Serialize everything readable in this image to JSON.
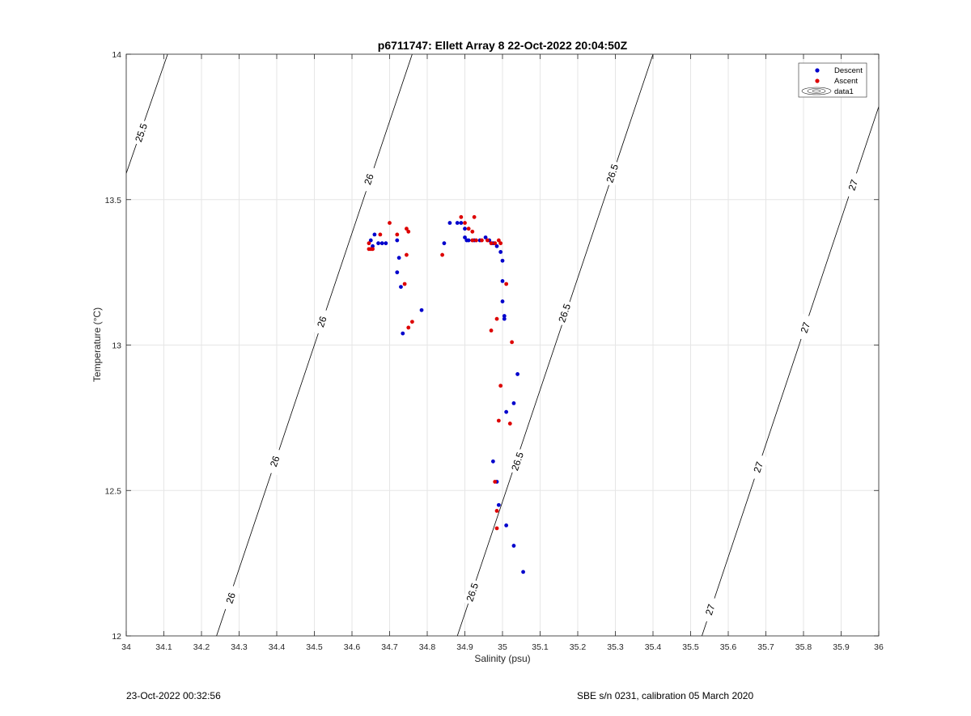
{
  "chart_data": {
    "type": "scatter",
    "title": "p6711747: Ellett Array 8 22-Oct-2022 20:04:50Z",
    "xlabel": "Salinity (psu)",
    "ylabel": "Temperature (°C)",
    "xlim": [
      34,
      36
    ],
    "ylim": [
      12,
      14
    ],
    "xticks": [
      "34",
      "34.1",
      "34.2",
      "34.3",
      "34.4",
      "34.5",
      "34.6",
      "34.7",
      "34.8",
      "34.9",
      "35",
      "35.1",
      "35.2",
      "35.3",
      "35.4",
      "35.5",
      "35.6",
      "35.7",
      "35.8",
      "35.9",
      "36"
    ],
    "yticks": [
      "12",
      "12.5",
      "13",
      "13.5",
      "14"
    ],
    "grid": true,
    "legend_position": "top-right",
    "legend": [
      "Descent",
      "Ascent",
      "data1"
    ],
    "colors": {
      "descent": "#0000cc",
      "ascent": "#dd0000",
      "contour": "#000000",
      "grid": "#e6e6e6"
    },
    "contours": [
      {
        "level": "25.5",
        "points": [
          [
            34.0,
            13.59
          ],
          [
            34.11,
            14.0
          ]
        ],
        "labels": [
          [
            34.04,
            13.73
          ]
        ]
      },
      {
        "level": "26",
        "points": [
          [
            34.24,
            12.0
          ],
          [
            34.76,
            14.0
          ]
        ],
        "labels": [
          [
            34.278,
            12.13
          ],
          [
            34.395,
            12.6
          ],
          [
            34.52,
            13.08
          ],
          [
            34.645,
            13.57
          ]
        ]
      },
      {
        "level": "26.5",
        "points": [
          [
            34.88,
            12.0
          ],
          [
            35.4,
            14.0
          ]
        ],
        "labels": [
          [
            34.92,
            12.15
          ],
          [
            35.04,
            12.6
          ],
          [
            35.165,
            13.11
          ],
          [
            35.292,
            13.59
          ]
        ]
      },
      {
        "level": "27",
        "points": [
          [
            35.53,
            12.0
          ],
          [
            36.0,
            13.82
          ]
        ],
        "labels": [
          [
            35.552,
            12.09
          ],
          [
            35.68,
            12.58
          ],
          [
            35.805,
            13.06
          ],
          [
            35.932,
            13.55
          ]
        ]
      }
    ],
    "series": [
      {
        "name": "Descent",
        "points": [
          [
            34.65,
            13.36
          ],
          [
            34.66,
            13.38
          ],
          [
            34.655,
            13.34
          ],
          [
            34.67,
            13.35
          ],
          [
            34.68,
            13.35
          ],
          [
            34.69,
            13.35
          ],
          [
            34.72,
            13.36
          ],
          [
            34.725,
            13.3
          ],
          [
            34.72,
            13.25
          ],
          [
            34.73,
            13.2
          ],
          [
            34.735,
            13.04
          ],
          [
            34.785,
            13.12
          ],
          [
            34.845,
            13.35
          ],
          [
            34.86,
            13.42
          ],
          [
            34.88,
            13.42
          ],
          [
            34.89,
            13.42
          ],
          [
            34.9,
            13.4
          ],
          [
            34.9,
            13.37
          ],
          [
            34.905,
            13.36
          ],
          [
            34.91,
            13.36
          ],
          [
            34.925,
            13.36
          ],
          [
            34.94,
            13.36
          ],
          [
            34.955,
            13.37
          ],
          [
            34.965,
            13.36
          ],
          [
            34.975,
            13.35
          ],
          [
            34.985,
            13.34
          ],
          [
            34.995,
            13.32
          ],
          [
            35.0,
            13.29
          ],
          [
            35.0,
            13.22
          ],
          [
            35.0,
            13.15
          ],
          [
            35.005,
            13.09
          ],
          [
            35.005,
            13.1
          ],
          [
            35.04,
            12.9
          ],
          [
            35.03,
            12.8
          ],
          [
            35.01,
            12.77
          ],
          [
            34.975,
            12.6
          ],
          [
            34.985,
            12.53
          ],
          [
            34.99,
            12.45
          ],
          [
            35.01,
            12.38
          ],
          [
            35.03,
            12.31
          ],
          [
            35.055,
            12.22
          ]
        ]
      },
      {
        "name": "Ascent",
        "points": [
          [
            34.645,
            13.35
          ],
          [
            34.645,
            13.33
          ],
          [
            34.65,
            13.33
          ],
          [
            34.655,
            13.33
          ],
          [
            34.675,
            13.38
          ],
          [
            34.7,
            13.42
          ],
          [
            34.72,
            13.38
          ],
          [
            34.745,
            13.4
          ],
          [
            34.75,
            13.39
          ],
          [
            34.745,
            13.31
          ],
          [
            34.74,
            13.21
          ],
          [
            34.75,
            13.06
          ],
          [
            34.76,
            13.08
          ],
          [
            34.84,
            13.31
          ],
          [
            34.89,
            13.44
          ],
          [
            34.9,
            13.42
          ],
          [
            34.91,
            13.4
          ],
          [
            34.92,
            13.39
          ],
          [
            34.925,
            13.44
          ],
          [
            34.92,
            13.36
          ],
          [
            34.93,
            13.36
          ],
          [
            34.945,
            13.36
          ],
          [
            34.96,
            13.36
          ],
          [
            34.97,
            13.35
          ],
          [
            34.98,
            13.35
          ],
          [
            34.99,
            13.36
          ],
          [
            34.995,
            13.35
          ],
          [
            35.01,
            13.21
          ],
          [
            34.985,
            13.09
          ],
          [
            34.97,
            13.05
          ],
          [
            35.025,
            13.01
          ],
          [
            34.995,
            12.86
          ],
          [
            34.99,
            12.74
          ],
          [
            35.02,
            12.73
          ],
          [
            34.98,
            12.53
          ],
          [
            34.985,
            12.43
          ],
          [
            34.985,
            12.37
          ]
        ]
      }
    ]
  },
  "footer": {
    "left": "23-Oct-2022 00:32:56",
    "right": "SBE s/n 0231, calibration 05 March 2020"
  }
}
